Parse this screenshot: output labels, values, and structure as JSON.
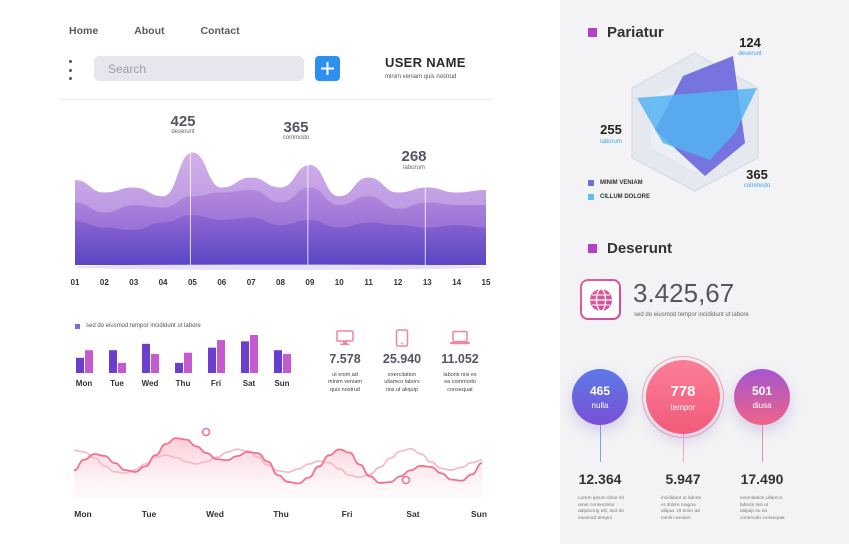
{
  "nav": {
    "items": [
      "Home",
      "About",
      "Contact"
    ]
  },
  "search": {
    "placeholder": "Search"
  },
  "user": {
    "name": "USER NAME",
    "subtitle": "minim veniam quis nostrud"
  },
  "area_chart": {
    "peaks": [
      {
        "value": "425",
        "label": "deserunt"
      },
      {
        "value": "365",
        "label": "commodo"
      },
      {
        "value": "268",
        "label": "laborum"
      }
    ]
  },
  "chart_data": [
    {
      "type": "area",
      "categories": [
        "01",
        "02",
        "03",
        "04",
        "05",
        "06",
        "07",
        "08",
        "09",
        "10",
        "11",
        "12",
        "13",
        "14",
        "15"
      ],
      "series": [
        {
          "values": [
            0.68,
            0.58,
            0.62,
            0.55,
            0.9,
            0.62,
            0.7,
            0.62,
            0.8,
            0.55,
            0.7,
            0.58,
            0.62,
            0.58,
            0.6
          ]
        },
        {
          "values": [
            0.5,
            0.42,
            0.48,
            0.46,
            0.55,
            0.58,
            0.6,
            0.5,
            0.62,
            0.48,
            0.55,
            0.45,
            0.5,
            0.48,
            0.48
          ]
        },
        {
          "values": [
            0.35,
            0.3,
            0.28,
            0.34,
            0.4,
            0.36,
            0.38,
            0.32,
            0.36,
            0.3,
            0.34,
            0.32,
            0.3,
            0.32,
            0.3
          ]
        }
      ],
      "colors": [
        "#c7a3e3",
        "#a87bd8",
        "#7f57c9"
      ]
    },
    {
      "type": "bar",
      "legend": "sed do eiusmod tempor incididunt ut labore",
      "categories": [
        "Mon",
        "Tue",
        "Wed",
        "Thu",
        "Fri",
        "Sat",
        "Sun"
      ],
      "series": [
        {
          "values": [
            12,
            18,
            23,
            8,
            20,
            25,
            18
          ]
        },
        {
          "values": [
            18,
            8,
            15,
            16,
            26,
            30,
            15
          ]
        }
      ],
      "colors": [
        "#6a3fd0",
        "#c559cf"
      ]
    },
    {
      "type": "line",
      "categories": [
        "Mon",
        "Tue",
        "Wed",
        "Thu",
        "Fri",
        "Sat",
        "Sun"
      ],
      "series": [
        {
          "values": [
            0.35,
            0.6,
            0.9,
            0.25,
            0.55,
            0.15,
            0.5
          ]
        },
        {
          "values": [
            0.6,
            0.4,
            0.7,
            0.5,
            0.3,
            0.65,
            0.4
          ]
        }
      ],
      "colors": [
        "#f0748f",
        "#f6b6c3"
      ]
    }
  ],
  "devices": [
    {
      "icon": "monitor-icon",
      "value": "7.578",
      "text": [
        "ut enim ad",
        "minim veniam",
        "quis nostrud"
      ]
    },
    {
      "icon": "tablet-icon",
      "value": "25.940",
      "text": [
        "exercitation",
        "ullamco labors",
        "nisi ut aliquip"
      ]
    },
    {
      "icon": "laptop-icon",
      "value": "11.052",
      "text": [
        "laboris nisi ex",
        "ea commodo",
        "consequat"
      ]
    }
  ],
  "line_days": [
    "Mon",
    "Tue",
    "Wed",
    "Thu",
    "Fri",
    "Sat",
    "Sun"
  ],
  "pariatur": {
    "title": "Pariatur",
    "values": [
      {
        "value": "124",
        "label": "deserunt"
      },
      {
        "value": "255",
        "label": "laborum"
      },
      {
        "value": "365",
        "label": "commodo"
      }
    ],
    "legend": [
      "MINIM VENIAM",
      "CILLUM DOLORE"
    ],
    "colors": [
      "#6a71e0",
      "#5ec0f0"
    ]
  },
  "deserunt": {
    "title": "Deserunt",
    "value": "3.425,67",
    "subtitle": "sed do eiusmod tempor incididunt ut labore"
  },
  "circles": [
    {
      "value": "465",
      "label": "nulla",
      "stat": "12.364",
      "text": [
        "Lorem ipsum dolor sit",
        "amet consectetur",
        "adipiscing elit, sed do",
        "eiusmod tempor"
      ]
    },
    {
      "value": "778",
      "label": "tempor",
      "stat": "5.947",
      "text": [
        "incididunt ut labore",
        "et dolore magna",
        "aliqua. Ut enim ad",
        "minim veniam"
      ]
    },
    {
      "value": "501",
      "label": "diusa",
      "stat": "17.490",
      "text": [
        "exercitation ullamco",
        "laboris nisi ut",
        "aliquip ex ea",
        "commodo consequat"
      ]
    }
  ]
}
